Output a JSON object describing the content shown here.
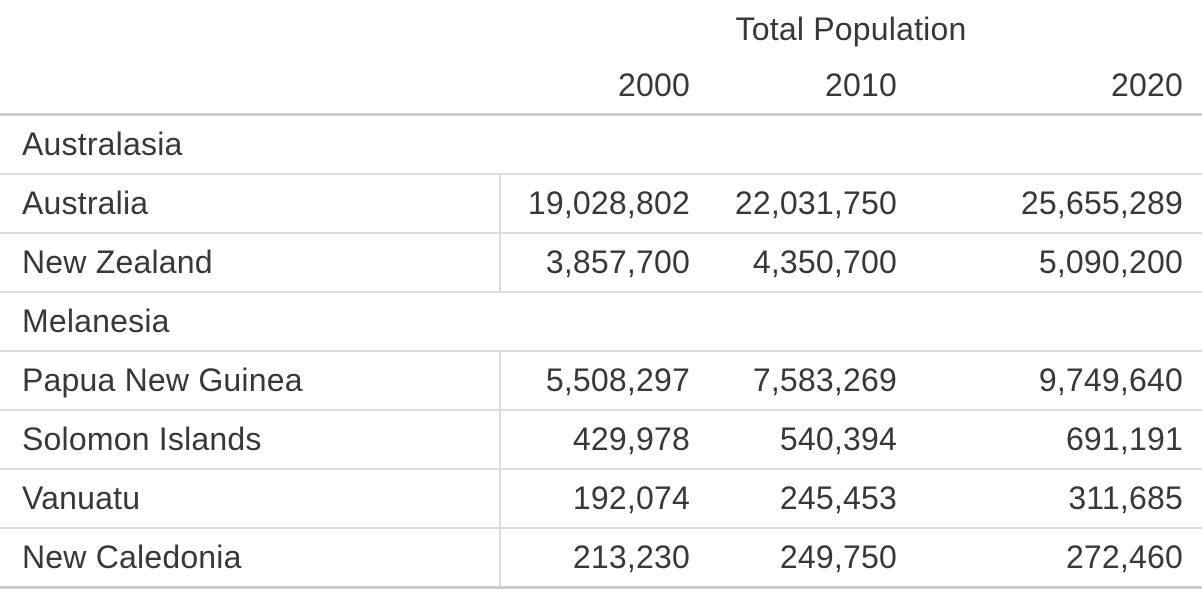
{
  "chart_data": {
    "type": "table",
    "title": "Total Population",
    "columns": [
      "2000",
      "2010",
      "2020"
    ],
    "groups": [
      {
        "name": "Australasia",
        "rows": [
          {
            "country": "Australia",
            "values": [
              "19,028,802",
              "22,031,750",
              "25,655,289"
            ],
            "values_numeric": [
              19028802,
              22031750,
              25655289
            ]
          },
          {
            "country": "New Zealand",
            "values": [
              "3,857,700",
              "4,350,700",
              "5,090,200"
            ],
            "values_numeric": [
              3857700,
              4350700,
              5090200
            ]
          }
        ]
      },
      {
        "name": "Melanesia",
        "rows": [
          {
            "country": "Papua New Guinea",
            "values": [
              "5,508,297",
              "7,583,269",
              "9,749,640"
            ],
            "values_numeric": [
              5508297,
              7583269,
              9749640
            ]
          },
          {
            "country": "Solomon Islands",
            "values": [
              "429,978",
              "540,394",
              "691,191"
            ],
            "values_numeric": [
              429978,
              540394,
              691191
            ]
          },
          {
            "country": "Vanuatu",
            "values": [
              "192,074",
              "245,453",
              "311,685"
            ],
            "values_numeric": [
              192074,
              245453,
              311685
            ]
          },
          {
            "country": "New Caledonia",
            "values": [
              "213,230",
              "249,750",
              "272,460"
            ],
            "values_numeric": [
              213230,
              249750,
              272460
            ]
          }
        ]
      }
    ],
    "layout": {
      "grid": "horizontal-rules-only",
      "value_alignment": "right",
      "country_column_divider": true
    }
  },
  "colors": {
    "background": "#ffffff",
    "text": "#383838",
    "rule_heavy": "#cdcdcd",
    "rule_light": "#dcdcdc"
  }
}
